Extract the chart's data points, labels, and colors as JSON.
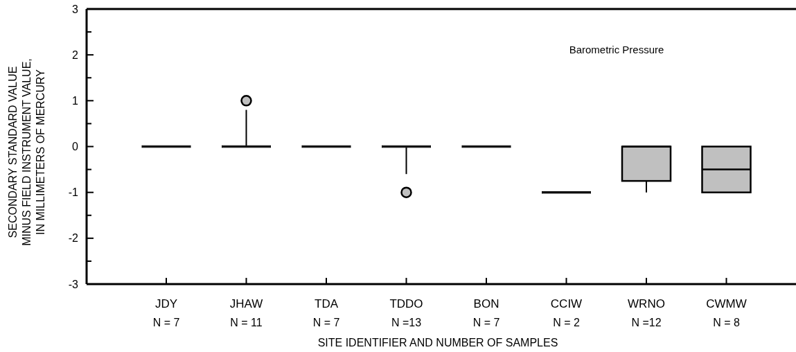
{
  "chart_data": {
    "type": "box",
    "categories": [
      "JDY\nN = 7",
      "JHAW\nN = 11",
      "TDA\nN = 7",
      "TDDO\nN =13",
      "BON\nN = 7",
      "CCIW\nN = 2",
      "WRNO\nN =12",
      "CWMW\nN = 8"
    ],
    "boxes": [
      {
        "low": 0,
        "q1": 0,
        "median": 0,
        "q3": 0,
        "high": 0
      },
      {
        "low": 0,
        "q1": 0,
        "median": 0,
        "q3": 0,
        "high": 0.8,
        "outliers": [
          1
        ]
      },
      {
        "low": 0,
        "q1": 0,
        "median": 0,
        "q3": 0,
        "high": 0
      },
      {
        "low": -0.6,
        "q1": 0,
        "median": 0,
        "q3": 0,
        "high": 0,
        "outliers": [
          -1
        ]
      },
      {
        "low": 0,
        "q1": 0,
        "median": 0,
        "q3": 0,
        "high": 0
      },
      {
        "low": -1,
        "q1": -1,
        "median": -1,
        "q3": -1,
        "high": -1
      },
      {
        "low": -1,
        "q1": -0.75,
        "median": 0,
        "q3": 0,
        "high": 0
      },
      {
        "low": -1,
        "q1": -1,
        "median": -0.5,
        "q3": 0,
        "high": 0
      }
    ],
    "color": "#c0c0c0",
    "ylim": [
      -3,
      3
    ],
    "yticks": [
      -3,
      {
        "value": -2.5,
        "label": null
      },
      -2,
      {
        "value": -1.5,
        "label": null
      },
      -1,
      {
        "value": -0.5,
        "label": null
      },
      0,
      {
        "value": 0.5,
        "label": null
      },
      1,
      {
        "value": 1.5,
        "label": null
      },
      2,
      {
        "value": 2.5,
        "label": null
      },
      3
    ],
    "xlabel": "SITE IDENTIFIER AND NUMBER OF SAMPLES",
    "ylabel": "SECONDARY STANDARD VALUE\nMINUS FIELD INSTRUMENT VALUE,\nIN MILLIMETERS OF MERCURY",
    "annotations": [
      "Barometric Pressure"
    ],
    "grid": false
  }
}
